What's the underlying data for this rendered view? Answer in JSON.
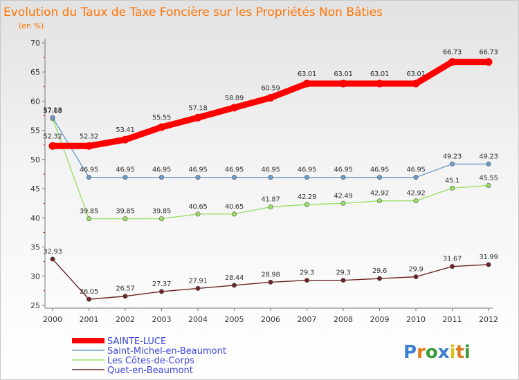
{
  "chart_data": {
    "type": "line",
    "title": "Evolution du Taux de Taxe Foncière sur les Propriétés Non Bâties",
    "unit_label": "(en %)",
    "xlabel": "",
    "ylabel": "",
    "x": [
      "2000",
      "2001",
      "2002",
      "2003",
      "2004",
      "2005",
      "2006",
      "2007",
      "2008",
      "2009",
      "2010",
      "2011",
      "2012"
    ],
    "ylim": [
      25,
      70
    ],
    "yticks": [
      25,
      30,
      35,
      40,
      45,
      50,
      55,
      60,
      65,
      70
    ],
    "grid": false,
    "legend_position": "bottom-left",
    "series": [
      {
        "name": "Quet-en-Beaumont",
        "color": "#6b2424",
        "values": [
          32.93,
          26.05,
          26.57,
          27.37,
          27.91,
          28.44,
          28.98,
          29.3,
          29.3,
          29.6,
          29.9,
          31.67,
          31.99
        ],
        "labels": [
          "32.93",
          "26.05",
          "26.57",
          "27.37",
          "27.91",
          "28.44",
          "28.98",
          "29.3",
          "29.3",
          "29.6",
          "29.9",
          "31.67",
          "31.99"
        ]
      },
      {
        "name": "Les Côtes-de-Corps",
        "color": "#99e066",
        "values": [
          57.03,
          39.85,
          39.85,
          39.85,
          40.65,
          40.65,
          41.87,
          42.29,
          42.49,
          42.92,
          42.92,
          45.1,
          45.55
        ],
        "labels": [
          "57.03",
          "39.85",
          "39.85",
          "39.85",
          "40.65",
          "40.65",
          "41.87",
          "42.29",
          "42.49",
          "42.92",
          "42.92",
          "45.1",
          "45.55"
        ]
      },
      {
        "name": "Saint-Michel-en-Beaumont",
        "color": "#6a9ccc",
        "values": [
          57.18,
          46.95,
          46.95,
          46.95,
          46.95,
          46.95,
          46.95,
          46.95,
          46.95,
          46.95,
          46.95,
          49.23,
          49.23
        ],
        "labels": [
          "57.18",
          "46.95",
          "46.95",
          "46.95",
          "46.95",
          "46.95",
          "46.95",
          "46.95",
          "46.95",
          "46.95",
          "46.95",
          "49.23",
          "49.23"
        ]
      },
      {
        "name": "SAINTE-LUCE",
        "color": "#ff0000",
        "values": [
          52.32,
          52.32,
          53.41,
          55.55,
          57.18,
          58.89,
          60.59,
          63.01,
          63.01,
          63.01,
          63.01,
          66.73,
          66.73
        ],
        "labels": [
          "52.32",
          "52.32",
          "53.41",
          "55.55",
          "57.18",
          "58.89",
          "60.59",
          "63.01",
          "63.01",
          "63.01",
          "63.01",
          "66.73",
          "66.73"
        ]
      }
    ],
    "legend_order": [
      "SAINTE-LUCE",
      "Saint-Michel-en-Beaumont",
      "Les Côtes-de-Corps",
      "Quet-en-Beaumont"
    ]
  },
  "logo": {
    "text": "Proxiti",
    "colors": [
      "#3a7fd0",
      "#e07a1a",
      "#3a9a3a",
      "#3a7fd0",
      "#d8c020",
      "#e07a1a",
      "#3a9a3a"
    ]
  }
}
